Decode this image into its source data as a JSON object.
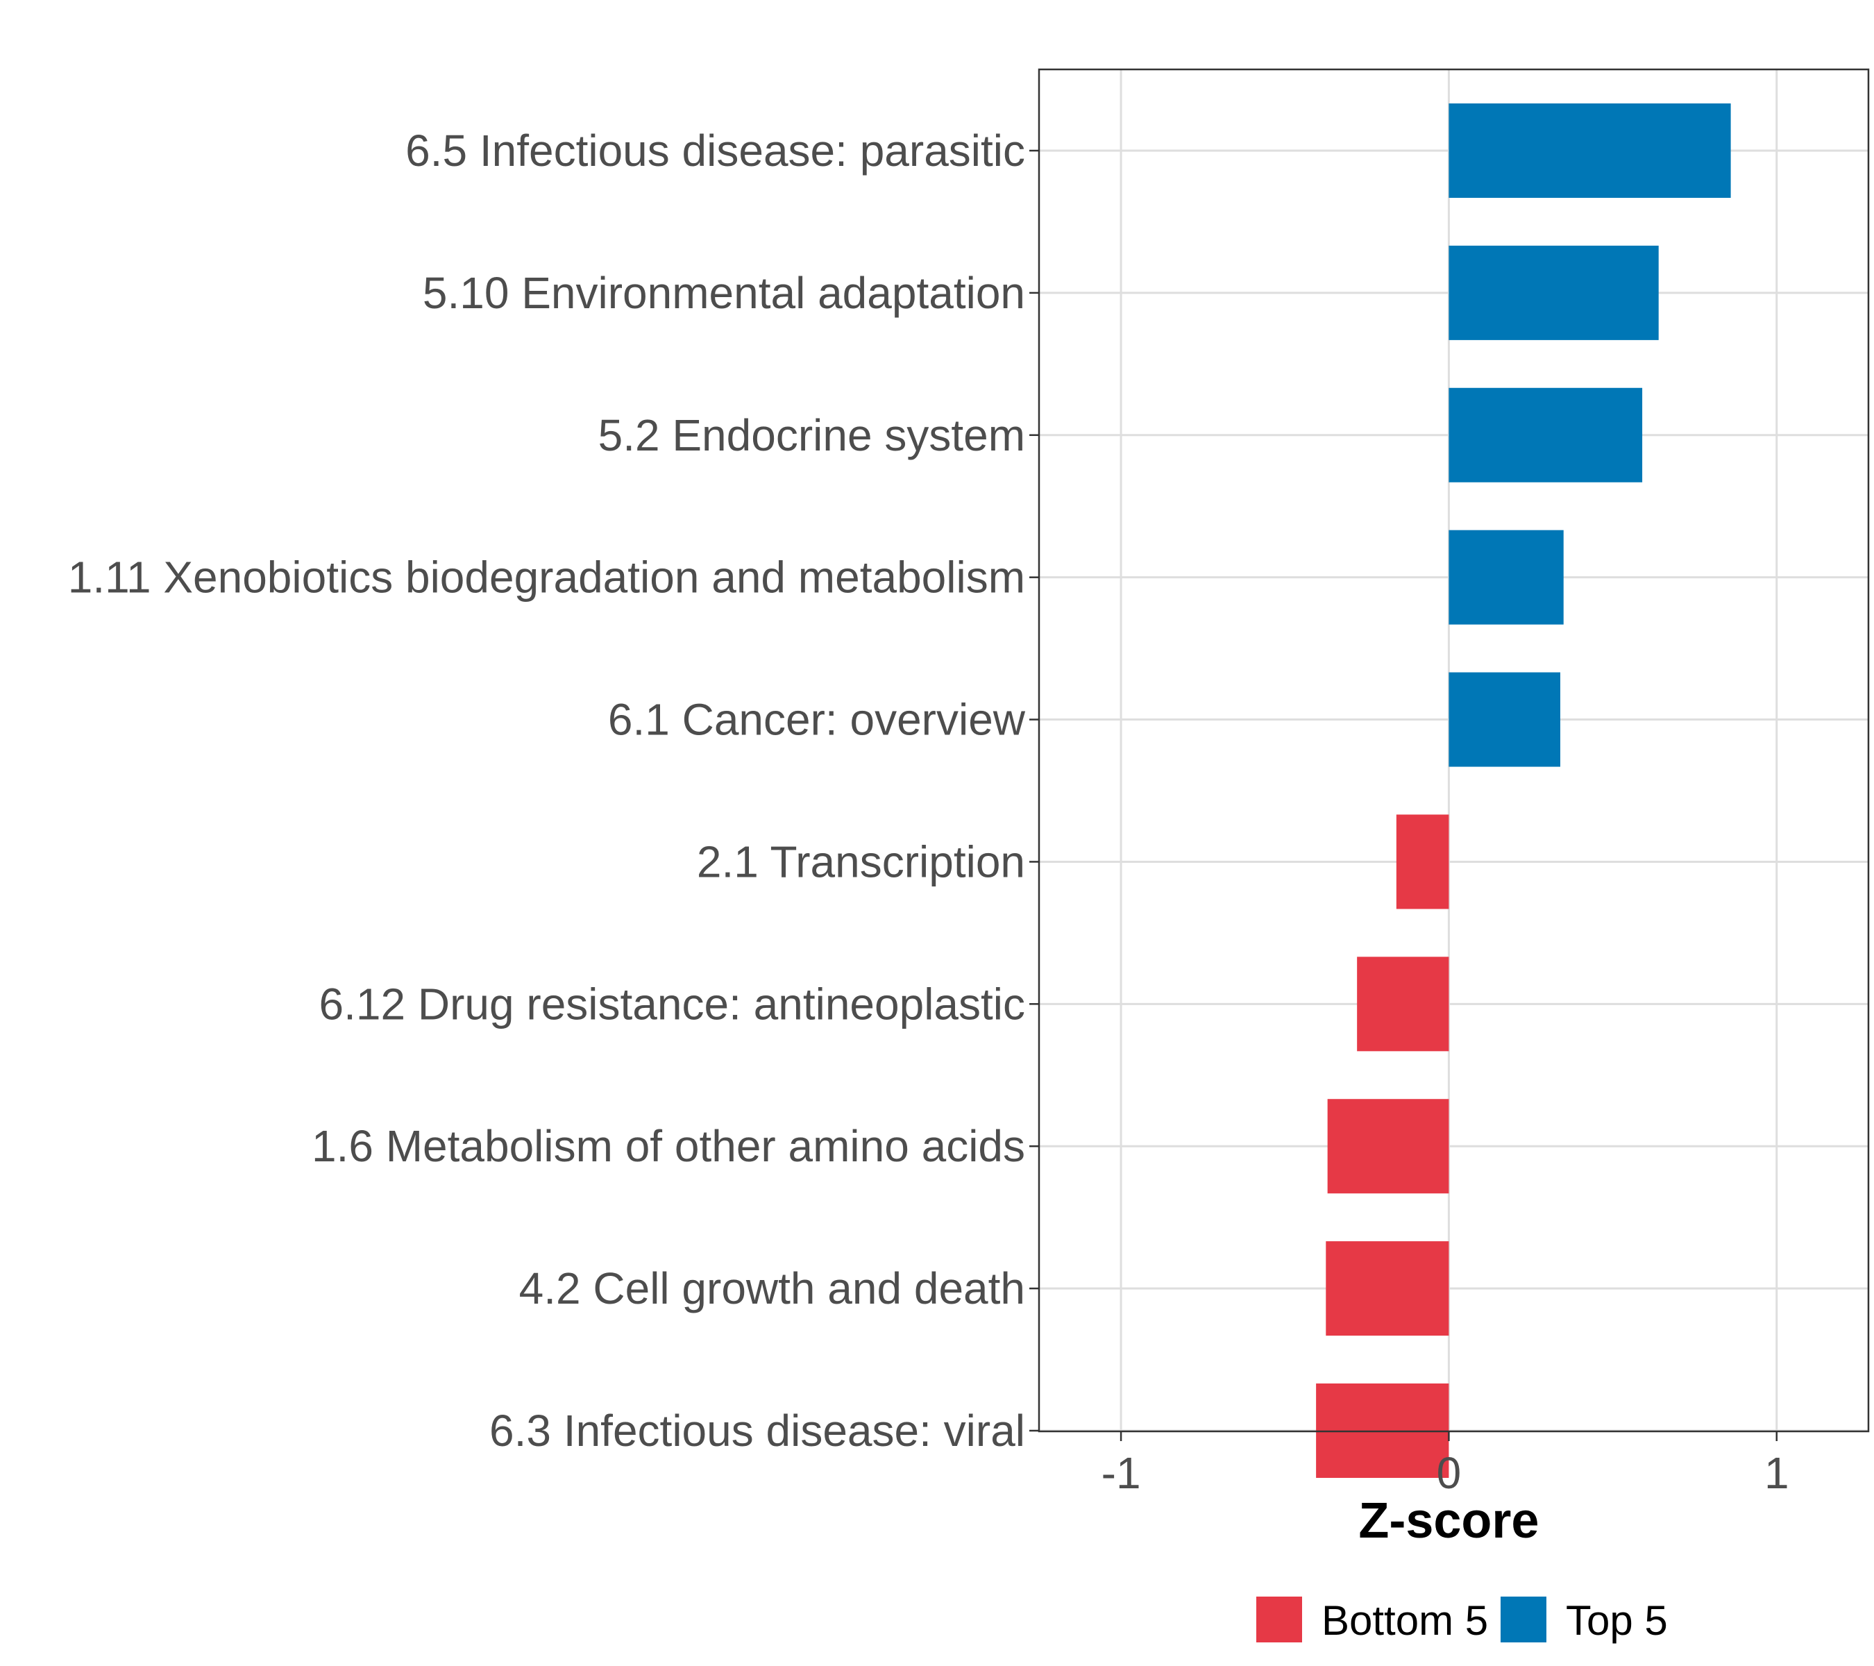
{
  "chart_data": {
    "type": "bar",
    "orientation": "horizontal",
    "title": "",
    "xlabel": "Z-score",
    "ylabel": "",
    "xlim": [
      -1.25,
      1.28
    ],
    "xticks": [
      -1,
      0,
      1
    ],
    "xtick_labels": [
      "-1",
      "0",
      "1"
    ],
    "grid": true,
    "legend_position": "bottom",
    "categories": [
      "6.5 Infectious disease: parasitic",
      "5.10 Environmental adaptation",
      "5.2 Endocrine system",
      "1.11 Xenobiotics biodegradation and metabolism",
      "6.1 Cancer: overview",
      "2.1 Transcription",
      "6.12 Drug resistance: antineoplastic",
      "1.6 Metabolism of other amino acids",
      "4.2 Cell growth and death",
      "6.3 Infectious disease: viral"
    ],
    "values": [
      0.86,
      0.64,
      0.59,
      0.35,
      0.34,
      -0.16,
      -0.28,
      -0.37,
      -0.375,
      -0.405
    ],
    "groups": [
      "Top 5",
      "Top 5",
      "Top 5",
      "Top 5",
      "Top 5",
      "Bottom 5",
      "Bottom 5",
      "Bottom 5",
      "Bottom 5",
      "Bottom 5"
    ],
    "legend": [
      {
        "name": "Bottom 5",
        "color": "#e63946"
      },
      {
        "name": "Top 5",
        "color": "#0077b6"
      }
    ]
  }
}
